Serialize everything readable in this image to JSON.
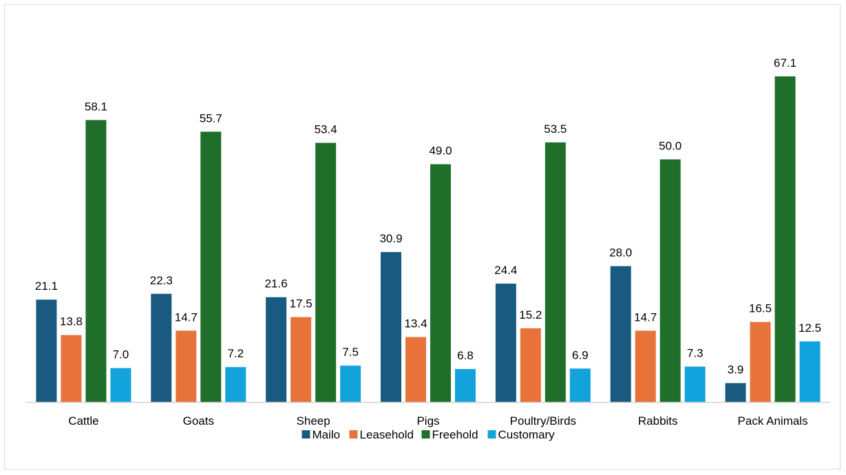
{
  "chart_data": {
    "type": "bar",
    "categories": [
      "Cattle",
      "Goats",
      "Sheep",
      "Pigs",
      "Poultry/Birds",
      "Rabbits",
      "Pack Animals"
    ],
    "series": [
      {
        "name": "Mailo",
        "color": "#1a5a80",
        "values": [
          21.1,
          22.3,
          21.6,
          30.9,
          24.4,
          28.0,
          3.9
        ]
      },
      {
        "name": "Leasehold",
        "color": "#e8733a",
        "values": [
          13.8,
          14.7,
          17.5,
          13.4,
          15.2,
          14.7,
          16.5
        ]
      },
      {
        "name": "Freehold",
        "color": "#1f6e2a",
        "values": [
          58.1,
          55.7,
          53.4,
          49.0,
          53.5,
          50.0,
          67.1
        ]
      },
      {
        "name": "Customary",
        "color": "#13a3dc",
        "values": [
          7.0,
          7.2,
          7.5,
          6.8,
          6.9,
          7.3,
          12.5
        ]
      }
    ],
    "ylim": [
      0,
      70
    ],
    "grid": false,
    "legend_position": "bottom",
    "data_labels": true,
    "value_format": "one-decimal"
  }
}
